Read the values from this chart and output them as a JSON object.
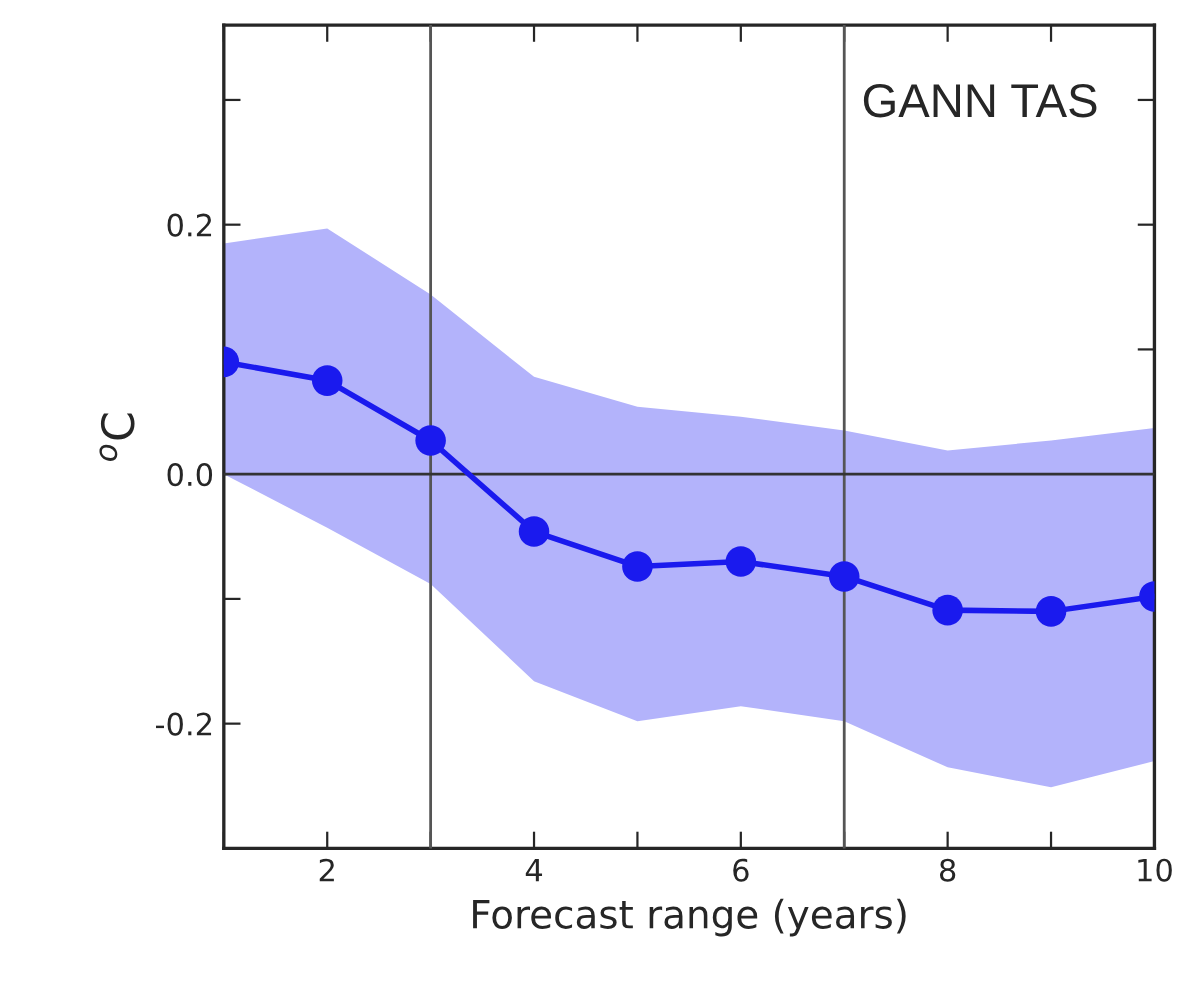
{
  "chart_data": {
    "type": "line",
    "xlabel": "Forecast range (years)",
    "ylabel": "$^{o}$C",
    "annotations": [
      "GANN TAS"
    ],
    "x": [
      1,
      2,
      3,
      4,
      5,
      6,
      7,
      8,
      9,
      10
    ],
    "series": [
      {
        "color": "#1a1aee",
        "values": [
          0.09,
          0.075,
          0.027,
          -0.046,
          -0.074,
          -0.07,
          -0.082,
          -0.109,
          -0.11,
          -0.098
        ],
        "lower": [
          0.0,
          -0.043,
          -0.088,
          -0.166,
          -0.198,
          -0.186,
          -0.198,
          -0.235,
          -0.251,
          -0.23
        ],
        "upper": [
          0.185,
          0.197,
          0.144,
          0.078,
          0.054,
          0.046,
          0.035,
          0.019,
          0.027,
          0.037
        ]
      }
    ],
    "marker": "circle",
    "line_style": "solid",
    "xlim": [
      1,
      10
    ],
    "ylim": [
      -0.3,
      0.36
    ],
    "xticks": [
      {
        "value": 1,
        "label": null
      },
      2,
      {
        "value": 3,
        "label": null
      },
      4,
      {
        "value": 5,
        "label": null
      },
      6,
      {
        "value": 7,
        "label": null
      },
      8,
      {
        "value": 9,
        "label": null
      },
      10
    ],
    "yticks": [
      {
        "value": -0.3,
        "label": null
      },
      {
        "value": -0.2,
        "label": "-0.2"
      },
      {
        "value": -0.1,
        "label": null
      },
      {
        "value": 0,
        "label": "0.0"
      },
      {
        "value": 0.1,
        "label": null
      },
      0.2,
      {
        "value": 0.3,
        "label": null
      }
    ],
    "ref_lines": [
      {
        "axis": "x",
        "value": 3,
        "color": "#555555"
      },
      {
        "axis": "x",
        "value": 7,
        "color": "#555555"
      },
      {
        "axis": "y",
        "value": 0,
        "color": "#333333"
      }
    ],
    "grid": false,
    "legend": false
  }
}
